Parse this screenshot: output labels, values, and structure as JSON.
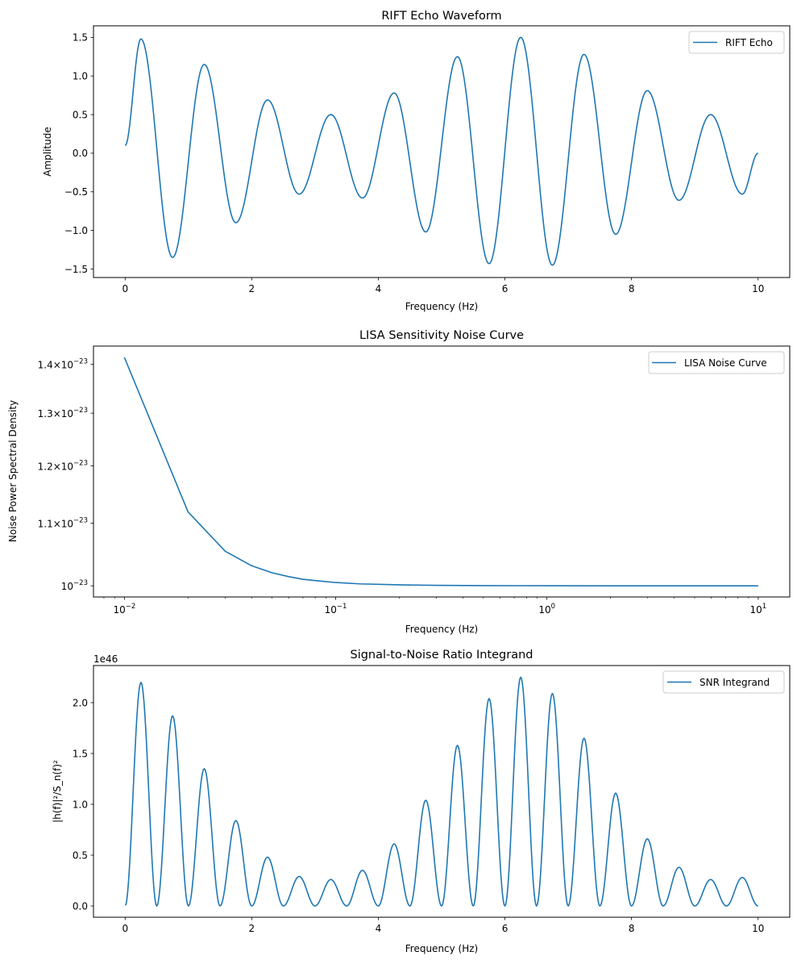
{
  "colors": {
    "line": "#1f77b4",
    "axis": "#000000",
    "legend_border": "#cccccc",
    "background": "#ffffff"
  },
  "chart_data": [
    {
      "type": "line",
      "title": "RIFT Echo Waveform",
      "xlabel": "Frequency (Hz)",
      "ylabel": "Amplitude",
      "xscale": "linear",
      "yscale": "linear",
      "xlim": [
        -0.5,
        10.5
      ],
      "ylim": [
        -1.61,
        1.65
      ],
      "xticks": [
        0,
        2,
        4,
        6,
        8,
        10
      ],
      "xtick_labels": [
        "0",
        "2",
        "4",
        "6",
        "8",
        "10"
      ],
      "yticks": [
        -1.5,
        -1.0,
        -0.5,
        0.0,
        0.5,
        1.0,
        1.5
      ],
      "ytick_labels": [
        "−1.5",
        "−1.0",
        "−0.5",
        "0.0",
        "0.5",
        "1.0",
        "1.5"
      ],
      "legend": {
        "position": "top-right",
        "entries": [
          "RIFT Echo"
        ]
      },
      "grid": false,
      "series": [
        {
          "name": "RIFT Echo",
          "x": [
            0,
            0.25,
            0.75,
            1.25,
            1.75,
            2.25,
            2.75,
            3.25,
            3.75,
            4.25,
            4.75,
            5.25,
            5.75,
            6.25,
            6.75,
            7.25,
            7.75,
            8.25,
            8.75,
            9.25,
            9.75,
            10
          ],
          "y": [
            0.1,
            1.48,
            -1.35,
            1.15,
            -0.9,
            0.69,
            -0.53,
            0.5,
            -0.58,
            0.78,
            -1.02,
            1.25,
            -1.43,
            1.5,
            -1.45,
            1.28,
            -1.05,
            0.81,
            -0.61,
            0.5,
            -0.53,
            0.0
          ]
        }
      ]
    },
    {
      "type": "line",
      "title": "LISA Sensitivity Noise Curve",
      "xlabel": "Frequency (Hz)",
      "ylabel": "Noise Power Spectral Density",
      "xscale": "log",
      "yscale": "log",
      "xlim": [
        0.00714,
        14.1
      ],
      "ylim": [
        9.832e-24,
        1.4395e-23
      ],
      "xticks": [
        0.01,
        0.1,
        1,
        10
      ],
      "xtick_labels": [
        {
          "base": "10",
          "exp": "−2"
        },
        {
          "base": "10",
          "exp": "−1"
        },
        {
          "base": "10",
          "exp": "0"
        },
        {
          "base": "10",
          "exp": "1"
        }
      ],
      "yticks": [
        1e-23,
        1.1e-23,
        1.2e-23,
        1.3e-23,
        1.4e-23
      ],
      "ytick_labels": [
        {
          "mant": "",
          "base": "10",
          "exp": "−23"
        },
        {
          "mant": "1.1×",
          "base": "10",
          "exp": "−23"
        },
        {
          "mant": "1.2×",
          "base": "10",
          "exp": "−23"
        },
        {
          "mant": "1.3×",
          "base": "10",
          "exp": "−23"
        },
        {
          "mant": "1.4×",
          "base": "10",
          "exp": "−23"
        }
      ],
      "legend": {
        "position": "top-right",
        "entries": [
          "LISA Noise Curve"
        ]
      },
      "grid": false,
      "series": [
        {
          "name": "LISA Noise Curve",
          "x": [
            0.01,
            0.02,
            0.03,
            0.04,
            0.05,
            0.06,
            0.07,
            0.08,
            0.1,
            0.13,
            0.2,
            0.3,
            0.5,
            1,
            2,
            5,
            10
          ],
          "y": [
            1.415e-23,
            1.119e-23,
            1.054e-23,
            1.031e-23,
            1.02e-23,
            1.014e-23,
            1.01e-23,
            1.008e-23,
            1.005e-23,
            1.003e-23,
            1.0015e-23,
            1.0007e-23,
            1.0003e-23,
            1.0001e-23,
            1e-23,
            1e-23,
            1e-23
          ]
        }
      ]
    },
    {
      "type": "line",
      "title": "Signal-to-Noise Ratio Integrand",
      "xlabel": "Frequency (Hz)",
      "ylabel": "|h(f)|²/S_n(f)²",
      "offset_text": "1e46",
      "xscale": "linear",
      "yscale": "linear",
      "xlim": [
        -0.5,
        10.5
      ],
      "ylim": [
        -0.111,
        2.365
      ],
      "xticks": [
        0,
        2,
        4,
        6,
        8,
        10
      ],
      "xtick_labels": [
        "0",
        "2",
        "4",
        "6",
        "8",
        "10"
      ],
      "yticks": [
        0.0,
        0.5,
        1.0,
        1.5,
        2.0
      ],
      "ytick_labels": [
        "0.0",
        "0.5",
        "1.0",
        "1.5",
        "2.0"
      ],
      "legend": {
        "position": "top-right",
        "entries": [
          "SNR Integrand"
        ]
      },
      "grid": false,
      "series": [
        {
          "name": "SNR Integrand",
          "peak_x": [
            0.25,
            0.75,
            1.25,
            1.75,
            2.25,
            2.75,
            3.25,
            3.75,
            4.25,
            4.75,
            5.25,
            5.75,
            6.25,
            6.75,
            7.25,
            7.75,
            8.25,
            8.75,
            9.25,
            9.75
          ],
          "peak_y": [
            2.2,
            1.87,
            1.35,
            0.84,
            0.48,
            0.29,
            0.26,
            0.35,
            0.61,
            1.04,
            1.58,
            2.04,
            2.25,
            2.09,
            1.65,
            1.11,
            0.66,
            0.38,
            0.26,
            0.28
          ],
          "zero_x": [
            0,
            0.5,
            1,
            1.5,
            2,
            2.5,
            3,
            3.5,
            4,
            4.5,
            5,
            5.5,
            6,
            6.5,
            7,
            7.5,
            8,
            8.5,
            9,
            9.5,
            10
          ],
          "start_y": 0.01,
          "end_y": 0.0
        }
      ]
    }
  ]
}
